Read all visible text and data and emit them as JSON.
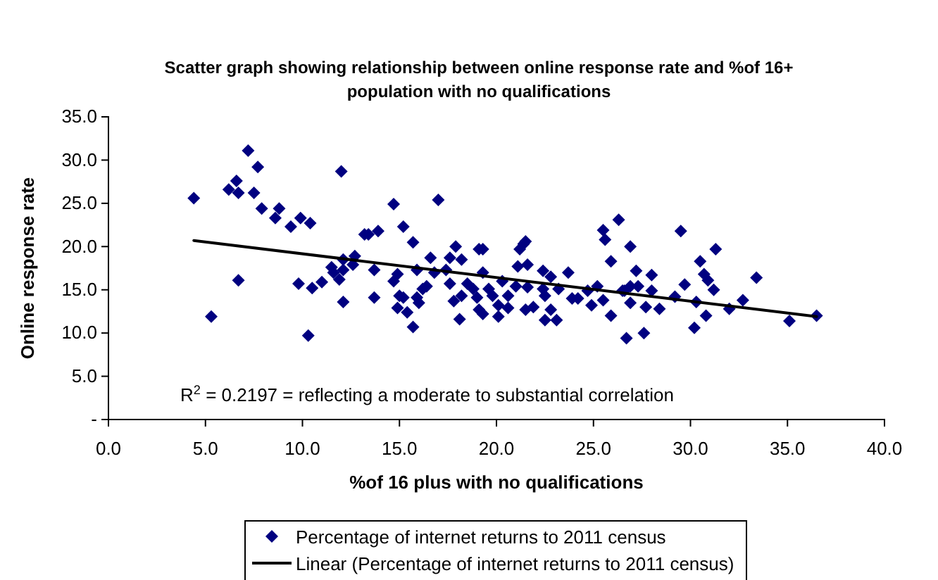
{
  "chart_data": {
    "type": "scatter",
    "title": "Scatter graph showing relationship between online response rate and %of 16+ population with no qualifications",
    "xlabel": "%of 16 plus with no qualifications",
    "ylabel": "Online response rate",
    "xlim": [
      0,
      40
    ],
    "xticks": [
      {
        "value": 0,
        "label": "0.0"
      },
      {
        "value": 5,
        "label": "5.0"
      },
      {
        "value": 10,
        "label": "10.0"
      },
      {
        "value": 15,
        "label": "15.0"
      },
      {
        "value": 20,
        "label": "20.0"
      },
      {
        "value": 25,
        "label": "25.0"
      },
      {
        "value": 30,
        "label": "30.0"
      },
      {
        "value": 35,
        "label": "35.0"
      },
      {
        "value": 40,
        "label": "40.0"
      }
    ],
    "ylim": [
      0,
      35
    ],
    "yticks": [
      {
        "value": 0,
        "label": "-"
      },
      {
        "value": 5,
        "label": "5.0"
      },
      {
        "value": 10,
        "label": "10.0"
      },
      {
        "value": 15,
        "label": "15.0"
      },
      {
        "value": 20,
        "label": "20.0"
      },
      {
        "value": 25,
        "label": "25.0"
      },
      {
        "value": 30,
        "label": "30.0"
      },
      {
        "value": 35,
        "label": "35.0"
      }
    ],
    "grid": false,
    "legend": "bottom",
    "annotations": [
      "R$^{2}$ = 0.2197 =  reflecting a moderate to substantial correlation"
    ],
    "series": [
      {
        "name": "Percentage of internet returns to 2011 census",
        "marker": "diamond",
        "color": "#000080",
        "x": [
          4.4,
          5.3,
          6.2,
          6.6,
          6.7,
          6.7,
          7.2,
          7.7,
          7.5,
          7.9,
          8.6,
          8.8,
          9.4,
          9.9,
          10.4,
          9.8,
          10.3,
          10.5,
          11.0,
          12.0,
          12.1,
          11.9,
          11.5,
          11.6,
          12.1,
          12.1,
          12.7,
          12.6,
          13.2,
          13.4,
          13.9,
          13.7,
          13.7,
          14.7,
          15.2,
          15.7,
          14.9,
          14.7,
          15.0,
          14.9,
          15.4,
          15.2,
          15.7,
          15.9,
          15.9,
          16.2,
          16.4,
          16.0,
          17.0,
          16.6,
          16.8,
          17.6,
          17.9,
          18.2,
          17.4,
          17.6,
          17.8,
          18.1,
          18.2,
          18.5,
          18.8,
          19.0,
          19.1,
          19.3,
          19.3,
          19.1,
          19.3,
          19.6,
          19.8,
          20.1,
          20.1,
          20.3,
          20.6,
          20.6,
          21.0,
          21.2,
          21.4,
          21.5,
          21.1,
          21.6,
          21.6,
          21.5,
          21.9,
          22.4,
          22.4,
          22.5,
          22.8,
          22.8,
          22.5,
          23.1,
          23.7,
          23.2,
          23.9,
          24.2,
          24.7,
          24.9,
          25.2,
          25.5,
          25.6,
          25.9,
          25.5,
          25.9,
          26.3,
          26.7,
          26.5,
          26.9,
          27.2,
          28.0,
          26.6,
          26.9,
          27.3,
          28.0,
          26.9,
          27.7,
          28.4,
          27.6,
          29.2,
          29.5,
          29.7,
          30.3,
          30.5,
          30.7,
          30.9,
          31.2,
          31.3,
          30.8,
          30.2,
          32.0,
          32.7,
          33.4,
          35.1,
          36.5
        ],
        "values": [
          25.6,
          11.9,
          26.6,
          27.6,
          26.2,
          16.1,
          31.1,
          29.2,
          26.2,
          24.4,
          23.3,
          24.4,
          22.3,
          23.3,
          22.7,
          15.7,
          9.7,
          15.2,
          15.9,
          28.7,
          13.6,
          16.2,
          17.6,
          17.0,
          17.3,
          18.5,
          18.9,
          17.9,
          21.4,
          21.4,
          21.8,
          17.3,
          14.1,
          24.9,
          22.3,
          20.5,
          16.8,
          16.0,
          14.3,
          12.9,
          12.4,
          14.1,
          10.7,
          17.3,
          14.1,
          15.1,
          15.4,
          13.5,
          25.4,
          18.7,
          17.0,
          18.7,
          20.0,
          18.5,
          17.3,
          15.7,
          13.7,
          11.6,
          14.3,
          15.7,
          15.1,
          14.1,
          19.7,
          19.7,
          17.0,
          12.7,
          12.2,
          15.1,
          14.3,
          13.2,
          11.9,
          16.0,
          14.3,
          12.9,
          15.4,
          19.7,
          20.3,
          20.6,
          17.7,
          17.9,
          15.3,
          12.7,
          13.0,
          17.2,
          15.1,
          14.3,
          16.5,
          12.7,
          11.5,
          11.5,
          17.0,
          15.1,
          14.0,
          14.0,
          14.9,
          13.2,
          15.4,
          21.9,
          20.8,
          18.3,
          13.8,
          12.0,
          23.1,
          9.4,
          14.9,
          20.0,
          17.2,
          16.7,
          14.9,
          15.4,
          15.4,
          14.9,
          13.5,
          13.0,
          12.8,
          10.0,
          14.2,
          21.8,
          15.6,
          13.6,
          18.3,
          16.8,
          16.1,
          15.0,
          19.7,
          12.0,
          10.6,
          12.8,
          13.8,
          16.4,
          11.4,
          12.0
        ]
      },
      {
        "name": "Linear (Percentage of internet returns to 2011 census)",
        "type": "line",
        "marker": "none",
        "line_style": "solid",
        "color": "#000000",
        "x": [
          4.4,
          36.5
        ],
        "values": [
          20.7,
          11.9
        ]
      }
    ]
  }
}
